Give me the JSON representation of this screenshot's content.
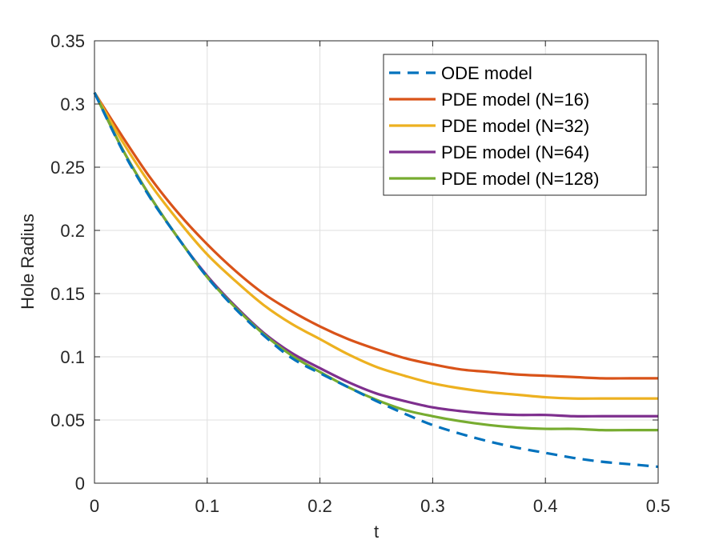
{
  "chart_data": {
    "type": "line",
    "title": "",
    "xlabel": "t",
    "ylabel": "Hole Radius",
    "xlim": [
      0,
      0.5
    ],
    "ylim": [
      0,
      0.35
    ],
    "grid": true,
    "legend_position": "top-right",
    "x_ticks": [
      0,
      0.1,
      0.2,
      0.3,
      0.4,
      0.5
    ],
    "x_tick_labels": [
      "0",
      "0.1",
      "0.2",
      "0.3",
      "0.4",
      "0.5"
    ],
    "y_ticks": [
      0,
      0.05,
      0.1,
      0.15,
      0.2,
      0.25,
      0.3,
      0.35
    ],
    "y_tick_labels": [
      "0",
      "0.05",
      "0.1",
      "0.15",
      "0.2",
      "0.25",
      "0.3",
      "0.35"
    ],
    "x": [
      0,
      0.025,
      0.05,
      0.075,
      0.1,
      0.125,
      0.15,
      0.175,
      0.2,
      0.225,
      0.25,
      0.275,
      0.3,
      0.325,
      0.35,
      0.375,
      0.4,
      0.425,
      0.45,
      0.475,
      0.5
    ],
    "series": [
      {
        "name": "ODE model",
        "color": "#0072BD",
        "style": "dashed",
        "values": [
          0.309,
          0.263,
          0.225,
          0.193,
          0.163,
          0.138,
          0.117,
          0.099,
          0.087,
          0.076,
          0.065,
          0.055,
          0.046,
          0.039,
          0.033,
          0.028,
          0.024,
          0.02,
          0.017,
          0.015,
          0.013
        ]
      },
      {
        "name": "PDE model (N=16)",
        "color": "#D95319",
        "style": "solid",
        "values": [
          0.309,
          0.274,
          0.241,
          0.213,
          0.189,
          0.168,
          0.15,
          0.136,
          0.124,
          0.114,
          0.106,
          0.099,
          0.094,
          0.09,
          0.088,
          0.086,
          0.085,
          0.084,
          0.083,
          0.083,
          0.083
        ]
      },
      {
        "name": "PDE model (N=32)",
        "color": "#EDB120",
        "style": "solid",
        "values": [
          0.309,
          0.27,
          0.236,
          0.207,
          0.181,
          0.16,
          0.141,
          0.126,
          0.114,
          0.102,
          0.092,
          0.085,
          0.079,
          0.075,
          0.072,
          0.07,
          0.068,
          0.067,
          0.067,
          0.067,
          0.067
        ]
      },
      {
        "name": "PDE model (N=64)",
        "color": "#7E2F8E",
        "style": "solid",
        "values": [
          0.309,
          0.264,
          0.226,
          0.193,
          0.164,
          0.14,
          0.119,
          0.103,
          0.091,
          0.08,
          0.071,
          0.065,
          0.06,
          0.057,
          0.055,
          0.054,
          0.054,
          0.053,
          0.053,
          0.053,
          0.053
        ]
      },
      {
        "name": "PDE model (N=128)",
        "color": "#77AC30",
        "style": "solid",
        "values": [
          0.309,
          0.264,
          0.226,
          0.193,
          0.163,
          0.139,
          0.118,
          0.101,
          0.088,
          0.076,
          0.066,
          0.058,
          0.053,
          0.049,
          0.046,
          0.044,
          0.043,
          0.043,
          0.042,
          0.042,
          0.042
        ]
      }
    ]
  }
}
